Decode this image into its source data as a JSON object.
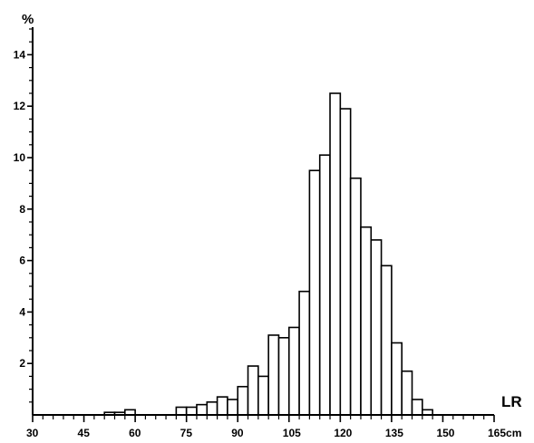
{
  "chart_data": {
    "type": "bar",
    "title": "",
    "ylabel": "%",
    "xlabel": "LR",
    "x_unit_suffix": "cm",
    "bin_width": 3,
    "xlim": [
      30,
      165
    ],
    "ylim": [
      0,
      15
    ],
    "x_ticks": [
      30,
      45,
      60,
      75,
      90,
      105,
      120,
      135,
      150,
      165
    ],
    "x_tick_labels": [
      "30",
      "45",
      "60",
      "75",
      "90",
      "105",
      "120",
      "135",
      "150",
      "165cm"
    ],
    "y_ticks": [
      2,
      4,
      6,
      8,
      10,
      12,
      14
    ],
    "y_tick_labels": [
      "2",
      "4",
      "6",
      "8",
      "10",
      "12",
      "14"
    ],
    "grid": false,
    "legend": "none",
    "bins": [
      {
        "start": 51,
        "value": 0.1
      },
      {
        "start": 54,
        "value": 0.1
      },
      {
        "start": 57,
        "value": 0.2
      },
      {
        "start": 72,
        "value": 0.3
      },
      {
        "start": 75,
        "value": 0.3
      },
      {
        "start": 78,
        "value": 0.4
      },
      {
        "start": 81,
        "value": 0.5
      },
      {
        "start": 84,
        "value": 0.7
      },
      {
        "start": 87,
        "value": 0.6
      },
      {
        "start": 90,
        "value": 1.1
      },
      {
        "start": 93,
        "value": 1.9
      },
      {
        "start": 96,
        "value": 1.5
      },
      {
        "start": 99,
        "value": 3.1
      },
      {
        "start": 102,
        "value": 3.0
      },
      {
        "start": 105,
        "value": 3.4
      },
      {
        "start": 108,
        "value": 4.8
      },
      {
        "start": 111,
        "value": 9.5
      },
      {
        "start": 114,
        "value": 10.1
      },
      {
        "start": 117,
        "value": 12.5
      },
      {
        "start": 120,
        "value": 11.9
      },
      {
        "start": 123,
        "value": 9.2
      },
      {
        "start": 126,
        "value": 7.3
      },
      {
        "start": 129,
        "value": 6.8
      },
      {
        "start": 132,
        "value": 5.8
      },
      {
        "start": 135,
        "value": 2.8
      },
      {
        "start": 138,
        "value": 1.7
      },
      {
        "start": 141,
        "value": 0.6
      },
      {
        "start": 144,
        "value": 0.2
      }
    ]
  }
}
